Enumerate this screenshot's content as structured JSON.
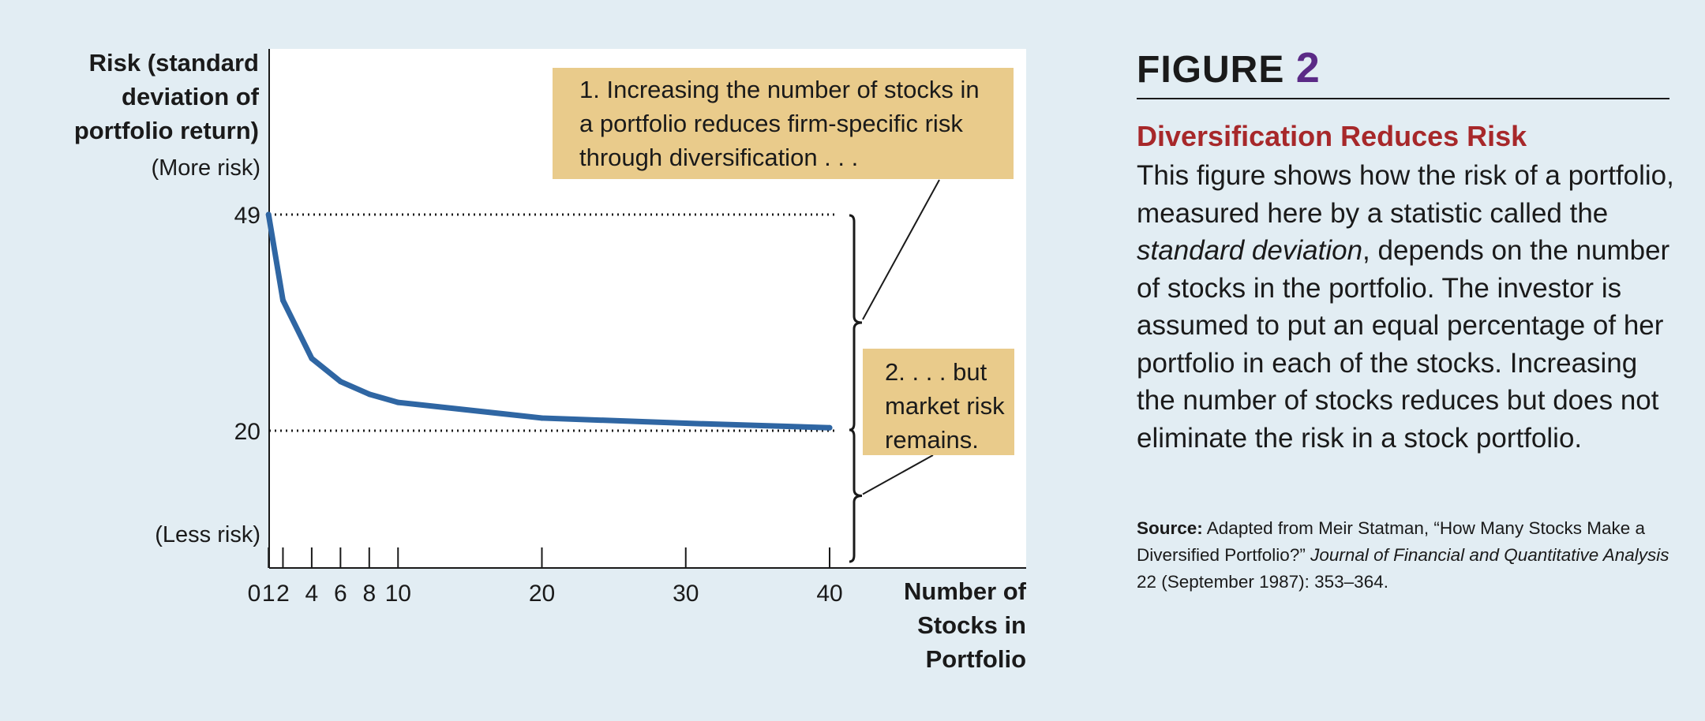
{
  "chart_data": {
    "type": "line",
    "ylabel_lines": [
      "Risk (standard",
      "deviation of",
      "portfolio return)"
    ],
    "y_top_note": "(More risk)",
    "y_bottom_note": "(Less risk)",
    "y_ticks": [
      49,
      20
    ],
    "xlabel_lines": [
      "Number of",
      "Stocks in",
      "Portfolio"
    ],
    "x_ticks": [
      0,
      1,
      2,
      4,
      6,
      8,
      10,
      20,
      30,
      40
    ],
    "xlim": [
      0,
      45
    ],
    "ylim": [
      0,
      56
    ],
    "series": [
      {
        "color": "#2f66a3",
        "x": [
          1,
          2,
          4,
          6,
          8,
          10,
          20,
          30,
          40
        ],
        "y": [
          49,
          37.5,
          29.7,
          26.6,
          24.9,
          23.8,
          21.7,
          21.0,
          20.4
        ]
      }
    ],
    "reference_lines": [
      49,
      20
    ],
    "annotations": [
      "1. Increasing the number of stocks in a portfolio reduces firm-specific risk through diversification . . .",
      "2. . . . but market risk remains."
    ],
    "callout_color": "#e9cb8b"
  },
  "callouts": {
    "first": "1. Increasing the number of stocks in a portfolio reduces firm-specific risk through diversification . . .",
    "second_lines": [
      "2. . . . but",
      "market risk",
      "remains."
    ]
  },
  "figure": {
    "label": "FIGURE",
    "number": "2",
    "number_color": "#5b2a86",
    "heading": "Diversification Reduces Risk",
    "heading_color": "#a7282a",
    "caption_before": "This figure shows how the risk of a portfolio, measured here by a statistic called the ",
    "caption_italic": "standard deviation",
    "caption_after": ", depends on the number of stocks in the portfolio. The investor is assumed to put an equal percentage of her portfolio in each of the stocks. Increasing the number of stocks reduces but does not eliminate the risk in a stock portfolio.",
    "source_label": "Source:",
    "source_text": " Adapted from Meir Statman, “How Many Stocks Make a Diversified Portfolio?” ",
    "source_journal": "Journal of Financial and Quantitative Analysis",
    "source_end": " 22 (September 1987): 353–364."
  }
}
